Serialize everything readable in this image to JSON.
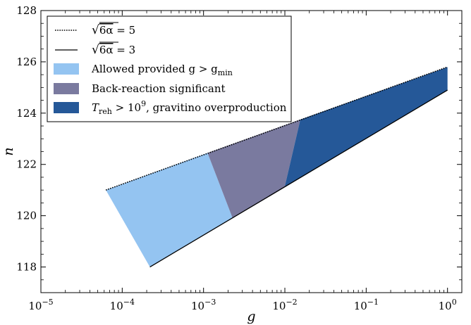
{
  "chart_data": {
    "type": "area",
    "xlabel": "g",
    "ylabel": "n",
    "xscale": "log",
    "xlim": [
      1e-05,
      1.5
    ],
    "ylim": [
      117,
      128
    ],
    "x_ticks": [
      {
        "value": 1e-05,
        "base": "10",
        "exp": "−5"
      },
      {
        "value": 0.0001,
        "base": "10",
        "exp": "−4"
      },
      {
        "value": 0.001,
        "base": "10",
        "exp": "−3"
      },
      {
        "value": 0.01,
        "base": "10",
        "exp": "−2"
      },
      {
        "value": 0.1,
        "base": "10",
        "exp": "−1"
      },
      {
        "value": 1,
        "base": "10",
        "exp": "0"
      }
    ],
    "y_ticks": [
      118,
      120,
      122,
      124,
      126,
      128
    ],
    "legend_position": "top-left",
    "lines": [
      {
        "name": "√6α = 5",
        "style": "dotted",
        "color": "#000000",
        "points": [
          [
            6.29e-05,
            121.0
          ],
          [
            1.0,
            125.8
          ]
        ]
      },
      {
        "name": "√6α = 3",
        "style": "solid",
        "color": "#000000",
        "points": [
          [
            0.000219,
            118.0
          ],
          [
            1.0,
            124.9
          ]
        ]
      }
    ],
    "regions": [
      {
        "name": "Allowed provided g > g_min",
        "color": "#94c4f1",
        "polygon": [
          [
            6.29e-05,
            121.0
          ],
          [
            0.00112,
            122.45
          ],
          [
            0.00228,
            119.9
          ],
          [
            0.000219,
            118.0
          ]
        ]
      },
      {
        "name": "Back-reaction significant",
        "color": "#7a7a9f",
        "polygon": [
          [
            0.00112,
            122.45
          ],
          [
            0.0155,
            123.75
          ],
          [
            0.00991,
            121.1
          ],
          [
            0.00228,
            119.9
          ]
        ]
      },
      {
        "name": "T_reh > 10^9, gravitino overproduction",
        "color": "#255898",
        "polygon": [
          [
            0.0155,
            123.75
          ],
          [
            1.0,
            125.8
          ],
          [
            1.0,
            124.9
          ],
          [
            0.00991,
            121.1
          ]
        ]
      }
    ],
    "legend": [
      {
        "kind": "line",
        "style": "dotted",
        "text_pre": "√",
        "radicand": "6α",
        "text_post": " = 5"
      },
      {
        "kind": "line",
        "style": "solid",
        "text_pre": "√",
        "radicand": "6α",
        "text_post": " = 3"
      },
      {
        "kind": "patch",
        "color": "#94c4f1",
        "text": "Allowed provided g > g",
        "sub": "min"
      },
      {
        "kind": "patch",
        "color": "#7a7a9f",
        "text": "Back-reaction significant"
      },
      {
        "kind": "patch",
        "color": "#255898",
        "text_pre": "T",
        "sub": "reh",
        "text_mid": " > 10",
        "sup": "9",
        "text_post": ", gravitino overproduction"
      }
    ]
  }
}
